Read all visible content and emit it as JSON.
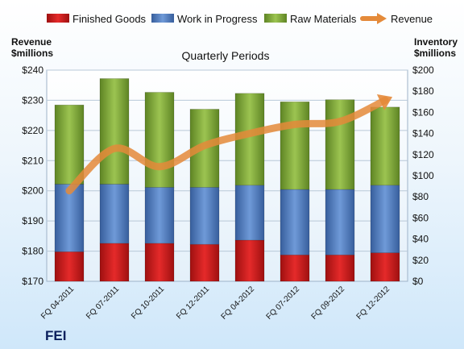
{
  "chart_data": {
    "type": "bar",
    "stacked": true,
    "title": "Quarterly Periods",
    "categories": [
      "FQ 04-2011",
      "FQ 07-2011",
      "FQ 10-2011",
      "FQ 12-2011",
      "FQ 04-2012",
      "FQ 07-2012",
      "FQ 09-2012",
      "FQ 12-2012"
    ],
    "series": [
      {
        "name": "Finished Goods",
        "axis": "right",
        "color": "#d42020",
        "values": [
          28,
          36,
          36,
          35,
          39,
          25,
          25,
          27
        ]
      },
      {
        "name": "Work in Progress",
        "axis": "right",
        "color": "#4f7fc6",
        "values": [
          64,
          56,
          53,
          54,
          52,
          62,
          62,
          64
        ]
      },
      {
        "name": "Raw Materials",
        "axis": "right",
        "color": "#84ad3c",
        "values": [
          75,
          100,
          90,
          74,
          87,
          83,
          85,
          74
        ]
      }
    ],
    "line_series": {
      "name": "Revenue",
      "axis": "left",
      "color": "#e48a3a",
      "values": [
        200,
        214,
        208,
        215,
        219,
        222,
        223,
        230
      ]
    },
    "left_axis": {
      "label_line1": "Revenue",
      "label_line2": "$millions",
      "min": 170,
      "max": 240,
      "step": 10,
      "prefix": "$"
    },
    "right_axis": {
      "label_line1": "Inventory",
      "label_line2": "$millions",
      "min": 0,
      "max": 200,
      "step": 20,
      "prefix": "$"
    },
    "legend_position": "top",
    "grid": true
  },
  "brand": "FEI"
}
